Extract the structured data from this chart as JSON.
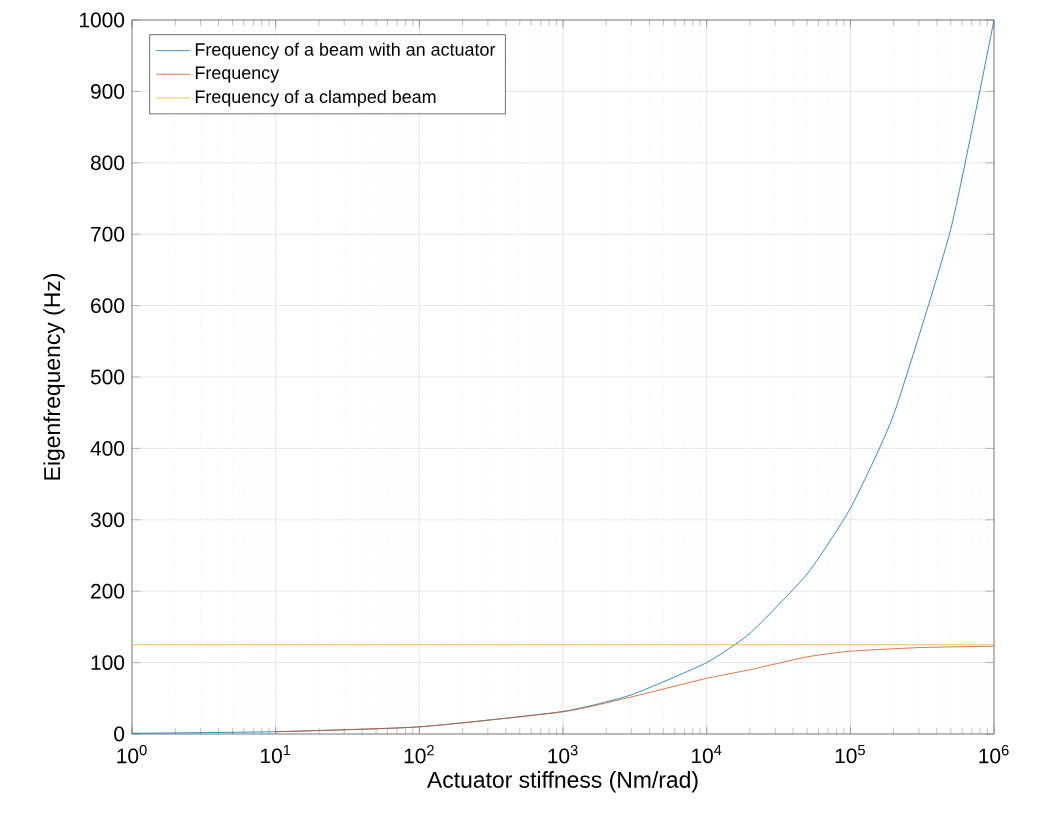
{
  "chart_data": {
    "type": "line",
    "xlabel": "Actuator stiffness (Nm/rad)",
    "ylabel": "Eigenfrequency (Hz)",
    "log": "x",
    "grid": true,
    "legend": "top left",
    "line_style": "solid",
    "marker": "none",
    "xlim": [
      1,
      1000000
    ],
    "ylim": [
      0,
      1000
    ],
    "xticks": [
      {
        "value": 1,
        "label": "10$^{0}$"
      },
      {
        "value": 10,
        "label": "10$^{1}$"
      },
      {
        "value": 100,
        "label": "10$^{2}$"
      },
      {
        "value": 1000,
        "label": "10$^{3}$"
      },
      {
        "value": 10000,
        "label": "10$^{4}$"
      },
      {
        "value": 100000,
        "label": "10$^{5}$"
      },
      {
        "value": 1000000,
        "label": "10$^{6}$"
      }
    ],
    "yticks": [
      0,
      100,
      200,
      300,
      400,
      500,
      600,
      700,
      800,
      900,
      1000
    ],
    "series": [
      {
        "name": "Frequency of a beam with an actuator",
        "color": "#0072bd",
        "x": [
          1,
          10,
          100,
          1000,
          3000,
          10000,
          20000,
          50000,
          100000,
          200000,
          500000,
          1000000
        ],
        "values": [
          1,
          3.2,
          10,
          31.6,
          55,
          100,
          141,
          224,
          316,
          447,
          707,
          1000
        ]
      },
      {
        "name": "Frequency",
        "color": "#d95319",
        "x": [
          10,
          100,
          1000,
          3000,
          10000,
          20000,
          50000,
          100000,
          300000,
          1000000
        ],
        "values": [
          3.2,
          10,
          31,
          52,
          78,
          90,
          108,
          116,
          121,
          123
        ]
      },
      {
        "name": "Frequency of a clamped beam",
        "color": "#edb120",
        "x": [
          1,
          1000000
        ],
        "values": [
          125,
          125
        ]
      }
    ]
  }
}
